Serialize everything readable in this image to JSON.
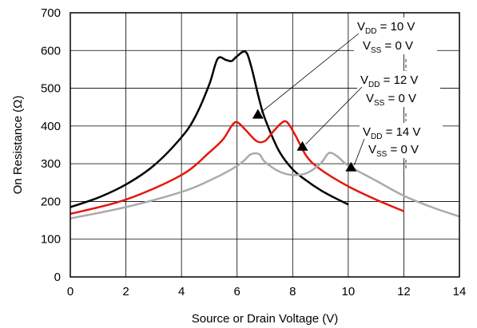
{
  "chart_data": {
    "type": "line",
    "title": "",
    "xlabel": "Source or Drain Voltage (V)",
    "ylabel": "On Resistance (Ω)",
    "xlim": [
      0,
      14
    ],
    "ylim": [
      0,
      700
    ],
    "xticks": [
      "0",
      "2",
      "4",
      "6",
      "8",
      "10",
      "12",
      "14"
    ],
    "yticks": [
      "0",
      "100",
      "200",
      "300",
      "400",
      "500",
      "600",
      "700"
    ],
    "grid": true,
    "legend": "none",
    "series": [
      {
        "color": "#000000",
        "x": [
          0,
          1,
          2,
          3,
          4,
          4.5,
          5,
          5.3,
          5.6,
          5.8,
          6,
          6.3,
          6.5,
          6.8,
          7,
          7.5,
          8,
          8.5,
          9,
          9.5,
          10
        ],
        "y": [
          185,
          210,
          245,
          295,
          370,
          425,
          510,
          578,
          575,
          572,
          585,
          597,
          560,
          470,
          420,
          335,
          285,
          255,
          230,
          210,
          192
        ]
      },
      {
        "color": "#e8150e",
        "x": [
          0,
          2,
          4,
          5,
          5.5,
          5.8,
          6,
          6.3,
          6.7,
          7,
          7.3,
          7.6,
          7.8,
          8.1,
          8.5,
          9,
          10,
          11,
          12
        ],
        "y": [
          167,
          205,
          270,
          330,
          365,
          400,
          410,
          390,
          360,
          360,
          385,
          408,
          410,
          375,
          320,
          285,
          240,
          205,
          174
        ]
      },
      {
        "color": "#aaaaaa",
        "x": [
          0,
          2,
          4,
          5,
          5.8,
          6.2,
          6.5,
          6.8,
          7,
          7.5,
          8,
          8.5,
          9,
          9.3,
          9.6,
          10,
          11,
          12,
          13,
          14
        ],
        "y": [
          155,
          185,
          225,
          255,
          285,
          305,
          325,
          325,
          305,
          280,
          270,
          275,
          300,
          328,
          320,
          295,
          255,
          215,
          185,
          160
        ]
      }
    ],
    "annotations": [
      {
        "vdd_prefix": "V",
        "vdd_sub": "DD",
        "vdd_value": " = 10 V",
        "vss_prefix": "V",
        "vss_sub": "SS",
        "vss_value": " = 0 V",
        "target_x": 6.75,
        "target_y": 430
      },
      {
        "vdd_prefix": "V",
        "vdd_sub": "DD",
        "vdd_value": " = 12 V",
        "vss_prefix": "V",
        "vss_sub": "SS",
        "vss_value": " = 0 V",
        "target_x": 8.35,
        "target_y": 345
      },
      {
        "vdd_prefix": "V",
        "vdd_sub": "DD",
        "vdd_value": " = 14 V",
        "vss_prefix": "V",
        "vss_sub": "SS",
        "vss_value": " = 0 V",
        "target_x": 10.1,
        "target_y": 290
      }
    ]
  }
}
